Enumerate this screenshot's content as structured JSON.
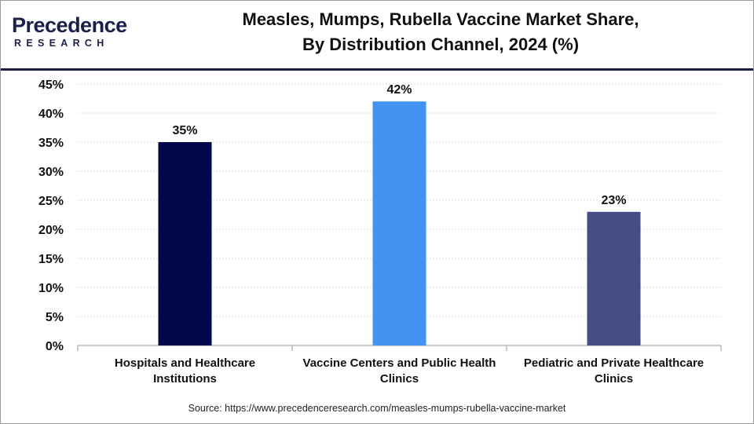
{
  "brand": {
    "logo_main": "Precedence",
    "logo_sub": "RESEARCH"
  },
  "header": {
    "title_line1": "Measles, Mumps, Rubella Vaccine Market Share,",
    "title_line2": "By Distribution Channel, 2024 (%)"
  },
  "source": "Source: https://www.precedenceresearch.com/measles-mumps-rubella-vaccine-market",
  "chart_data": {
    "type": "bar",
    "title": "Measles, Mumps, Rubella Vaccine Market Share, By Distribution Channel, 2024 (%)",
    "categories": [
      [
        "Hospitals and Healthcare",
        "Institutions"
      ],
      [
        "Vaccine Centers and Public Health",
        "Clinics"
      ],
      [
        "Pediatric and Private Healthcare",
        "Clinics"
      ]
    ],
    "values": [
      35,
      42,
      23
    ],
    "data_labels": [
      "35%",
      "42%",
      "23%"
    ],
    "colors": [
      "#02064a",
      "#4293f2",
      "#474b86"
    ],
    "ylim": [
      0,
      45
    ],
    "yticks": [
      0,
      5,
      10,
      15,
      20,
      25,
      30,
      35,
      40,
      45
    ],
    "ytick_labels": [
      "0%",
      "5%",
      "10%",
      "15%",
      "20%",
      "25%",
      "30%",
      "35%",
      "40%",
      "45%"
    ],
    "xlabel": "",
    "ylabel": "",
    "grid": true,
    "legend": "none"
  }
}
